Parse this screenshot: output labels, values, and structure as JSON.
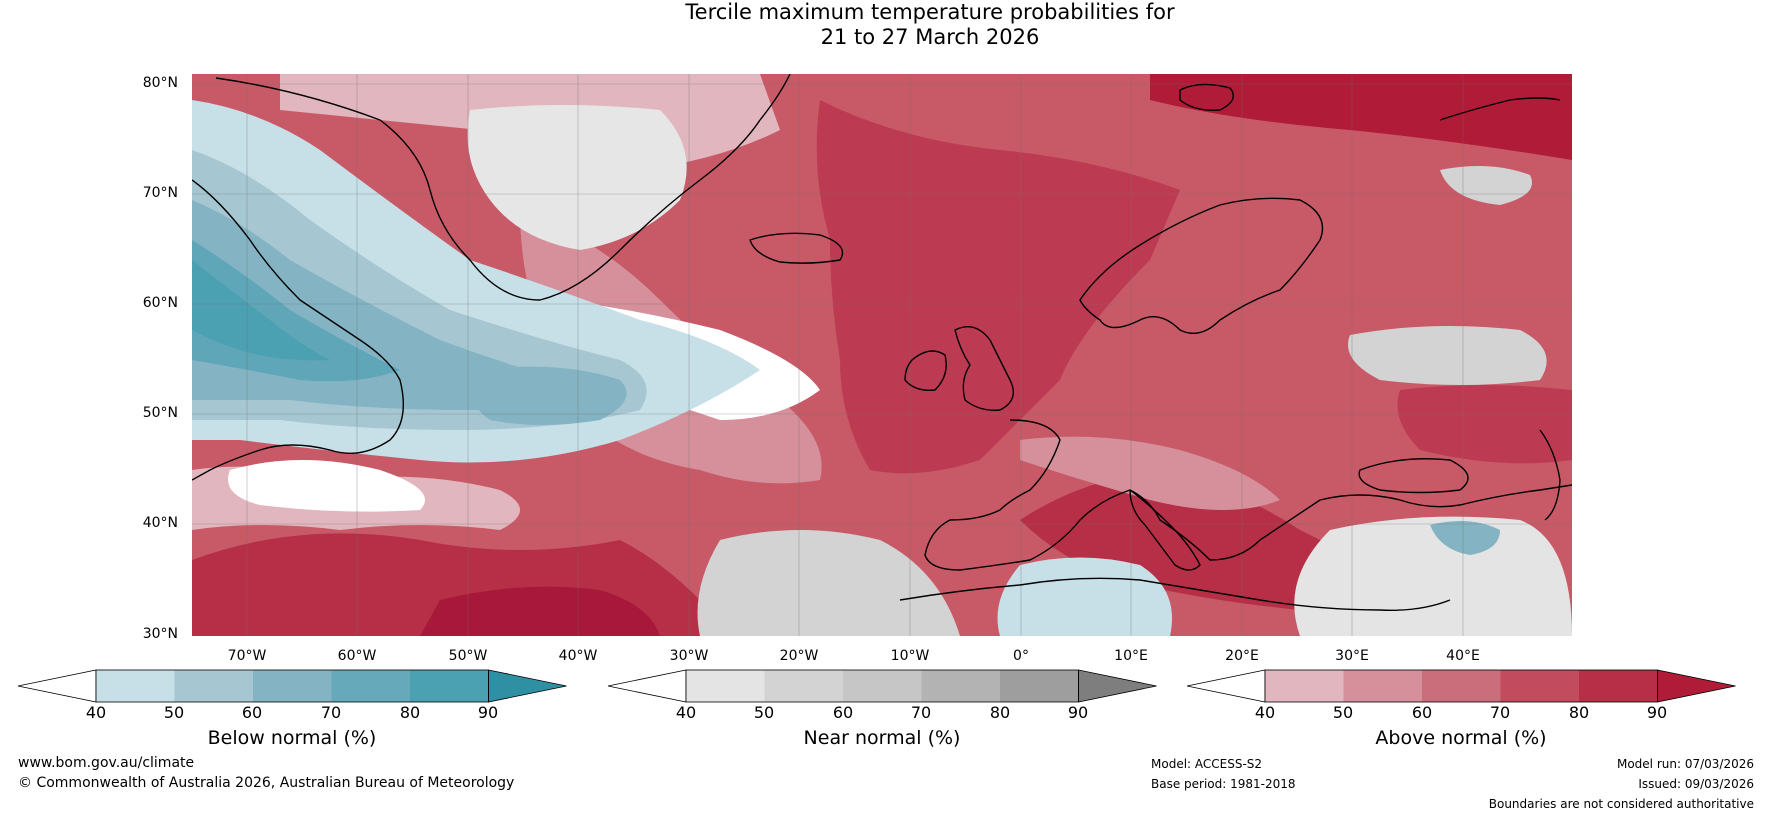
{
  "title": {
    "line1": "Tercile maximum temperature probabilities for",
    "line2": "21 to 27 March 2026"
  },
  "map": {
    "lat_labels": [
      "80°N",
      "70°N",
      "60°N",
      "50°N",
      "40°N",
      "30°N"
    ],
    "lon_labels": [
      "70°W",
      "60°W",
      "50°W",
      "40°W",
      "30°W",
      "20°W",
      "10°W",
      "0°",
      "10°E",
      "20°E",
      "30°E",
      "40°E"
    ],
    "colors": {
      "ocean_base": "#c85a68",
      "coastline": "#000000",
      "borders": "#7a7a7a",
      "gridlines": "#6e6e6e"
    }
  },
  "legends": [
    {
      "label": "Below normal (%)",
      "ticks": [
        "40",
        "50",
        "60",
        "70",
        "80",
        "90"
      ],
      "colors": [
        "#ffffff",
        "#c7dfe7",
        "#a6c7d2",
        "#84b3c3",
        "#66a9ba",
        "#4ba0b1",
        "#2f8fa3"
      ]
    },
    {
      "label": "Near normal (%)",
      "ticks": [
        "40",
        "50",
        "60",
        "70",
        "80",
        "90"
      ],
      "colors": [
        "#ffffff",
        "#e4e4e4",
        "#d3d3d3",
        "#c6c6c6",
        "#b3b3b3",
        "#9e9e9e",
        "#7e7e7e"
      ]
    },
    {
      "label": "Above normal (%)",
      "ticks": [
        "40",
        "50",
        "60",
        "70",
        "80",
        "90"
      ],
      "colors": [
        "#ffffff",
        "#e2b6be",
        "#d6909b",
        "#cb6e7c",
        "#c24b5e",
        "#b72f46",
        "#b01b38"
      ]
    }
  ],
  "footer": {
    "website": "www.bom.gov.au/climate",
    "copyright": "© Commonwealth of Australia 2026, Australian Bureau of Meteorology",
    "model": "Model: ACCESS-S2",
    "base_period": "Base period: 1981-2018",
    "model_run": "Model run: 07/03/2026",
    "issued": "Issued: 09/03/2026",
    "disclaimer": "Boundaries are not considered authoritative"
  }
}
